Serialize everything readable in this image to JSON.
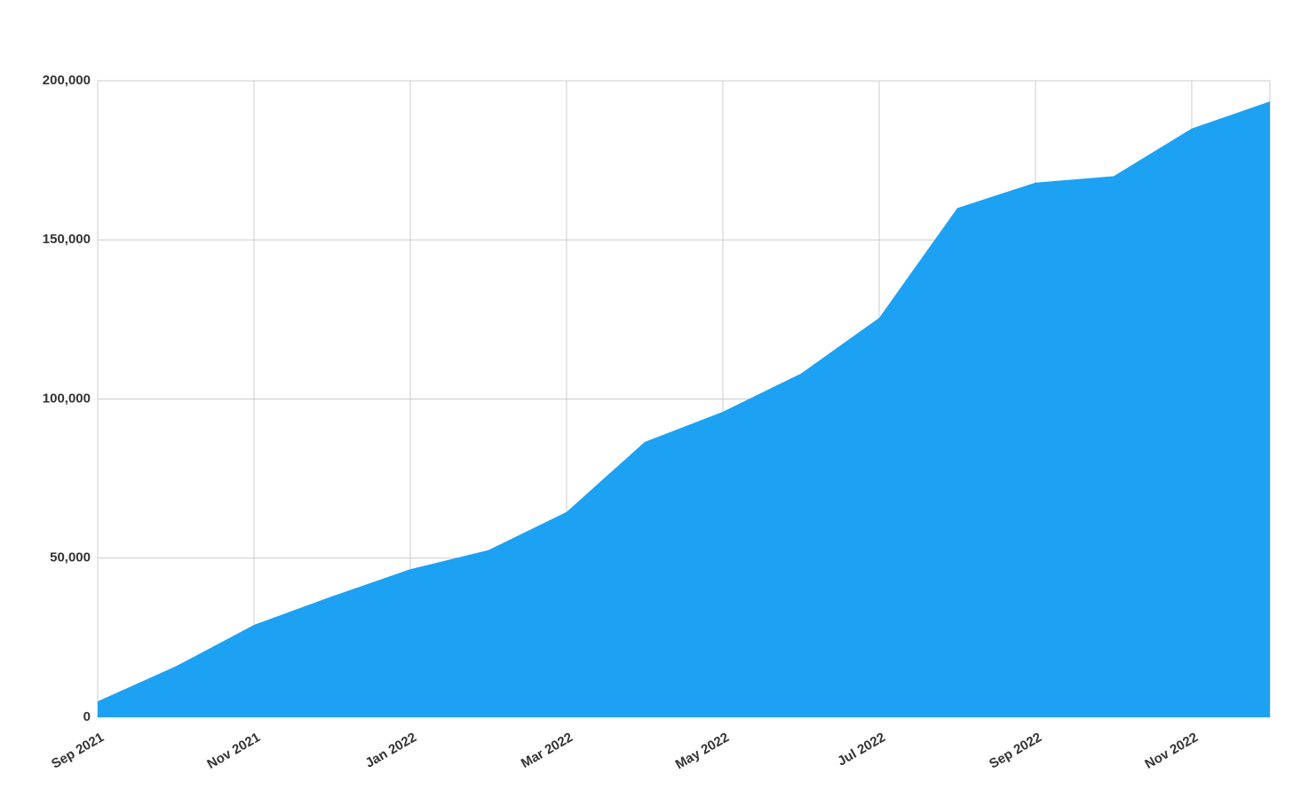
{
  "chart_data": {
    "type": "area",
    "categories": [
      "Sep 2021",
      null,
      "Nov 2021",
      null,
      "Jan 2022",
      null,
      "Mar 2022",
      null,
      "May 2022",
      null,
      "Jul 2022",
      null,
      "Sep 2022",
      null,
      "Nov 2022",
      null
    ],
    "values": [
      5000,
      16000,
      29000,
      38000,
      46500,
      52500,
      64500,
      86500,
      96000,
      108000,
      125500,
      160000,
      168000,
      170000,
      185000,
      193500
    ],
    "color": "#1da1f2",
    "ylim": [
      0,
      200000
    ],
    "yticks": [
      0,
      {
        "value": 50000,
        "label": "50,000"
      },
      {
        "value": 100000,
        "label": "100,000"
      },
      {
        "value": 150000,
        "label": "150,000"
      },
      {
        "value": 200000,
        "label": "200,000"
      }
    ],
    "grid": true
  }
}
